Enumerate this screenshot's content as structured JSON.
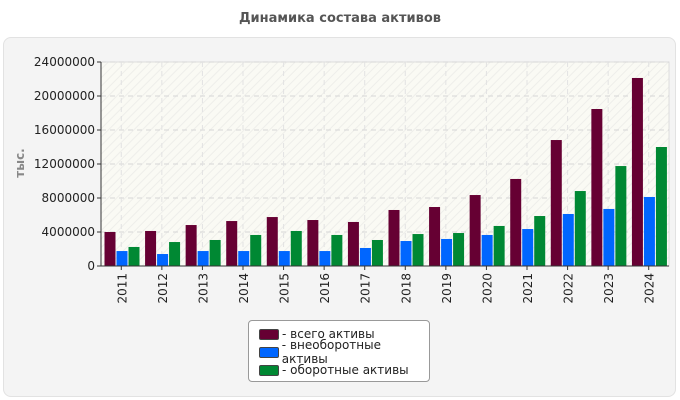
{
  "chart_data": {
    "type": "bar",
    "title": "Динамика состава активов",
    "ylabel": "тыс.",
    "xlabel": "",
    "ylim": [
      0,
      24000000
    ],
    "yticks": [
      0,
      4000000,
      8000000,
      12000000,
      16000000,
      20000000,
      24000000
    ],
    "grid": true,
    "legend_position": "bottom",
    "categories": [
      "2011",
      "2012",
      "2013",
      "2014",
      "2015",
      "2016",
      "2017",
      "2018",
      "2019",
      "2020",
      "2021",
      "2022",
      "2023",
      "2024"
    ],
    "series": [
      {
        "name": "- всего активы",
        "color": "#660033",
        "values": [
          4000000,
          4120000,
          4820000,
          5290000,
          5760000,
          5410000,
          5180000,
          6590000,
          6940000,
          8350000,
          10240000,
          14820000,
          18470000,
          22120000
        ]
      },
      {
        "name": "- внеоборотные активы",
        "color": "#0066ff",
        "values": [
          1760000,
          1410000,
          1760000,
          1760000,
          1760000,
          1760000,
          2120000,
          2940000,
          3180000,
          3650000,
          4350000,
          6120000,
          6710000,
          8120000
        ]
      },
      {
        "name": "- оборотные активы",
        "color": "#008833",
        "values": [
          2240000,
          2820000,
          3060000,
          3650000,
          4120000,
          3650000,
          3060000,
          3760000,
          3880000,
          4710000,
          5880000,
          8820000,
          11760000,
          14000000
        ]
      }
    ]
  }
}
